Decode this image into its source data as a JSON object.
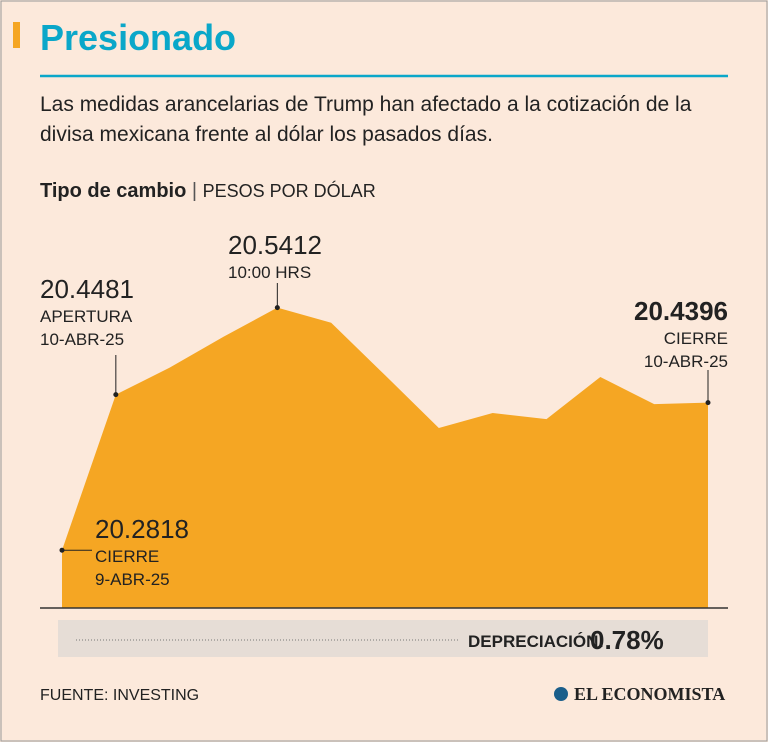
{
  "chart_data": {
    "type": "area",
    "title": "Presionado",
    "subtitle": "Las medidas arancelarias de Trump han afectado a la cotización de la divisa mexicana frente al dólar los pasados días.",
    "axis_title": "Tipo de cambio",
    "axis_unit": "PESOS POR DÓLAR",
    "values": [
      20.2818,
      20.4481,
      20.477,
      20.51,
      20.5412,
      20.525,
      20.469,
      20.4125,
      20.4285,
      20.422,
      20.467,
      20.438,
      20.4396
    ],
    "point_notes": [
      [
        "CIERRE",
        "9-ABR-25"
      ],
      [
        "APERTURA",
        "10-ABR-25"
      ],
      null,
      null,
      [
        "10:00 HRS"
      ],
      null,
      null,
      null,
      null,
      null,
      null,
      null,
      [
        "CIERRE",
        "10-ABR-25"
      ]
    ],
    "ylim": [
      20.22,
      20.56
    ],
    "color": "#f5a623",
    "depreciation": {
      "label": "DEPRECIACIÓN:",
      "value": "0.78%"
    },
    "source": "FUENTE: INVESTING",
    "brand": "EL ECONOMISTA"
  }
}
